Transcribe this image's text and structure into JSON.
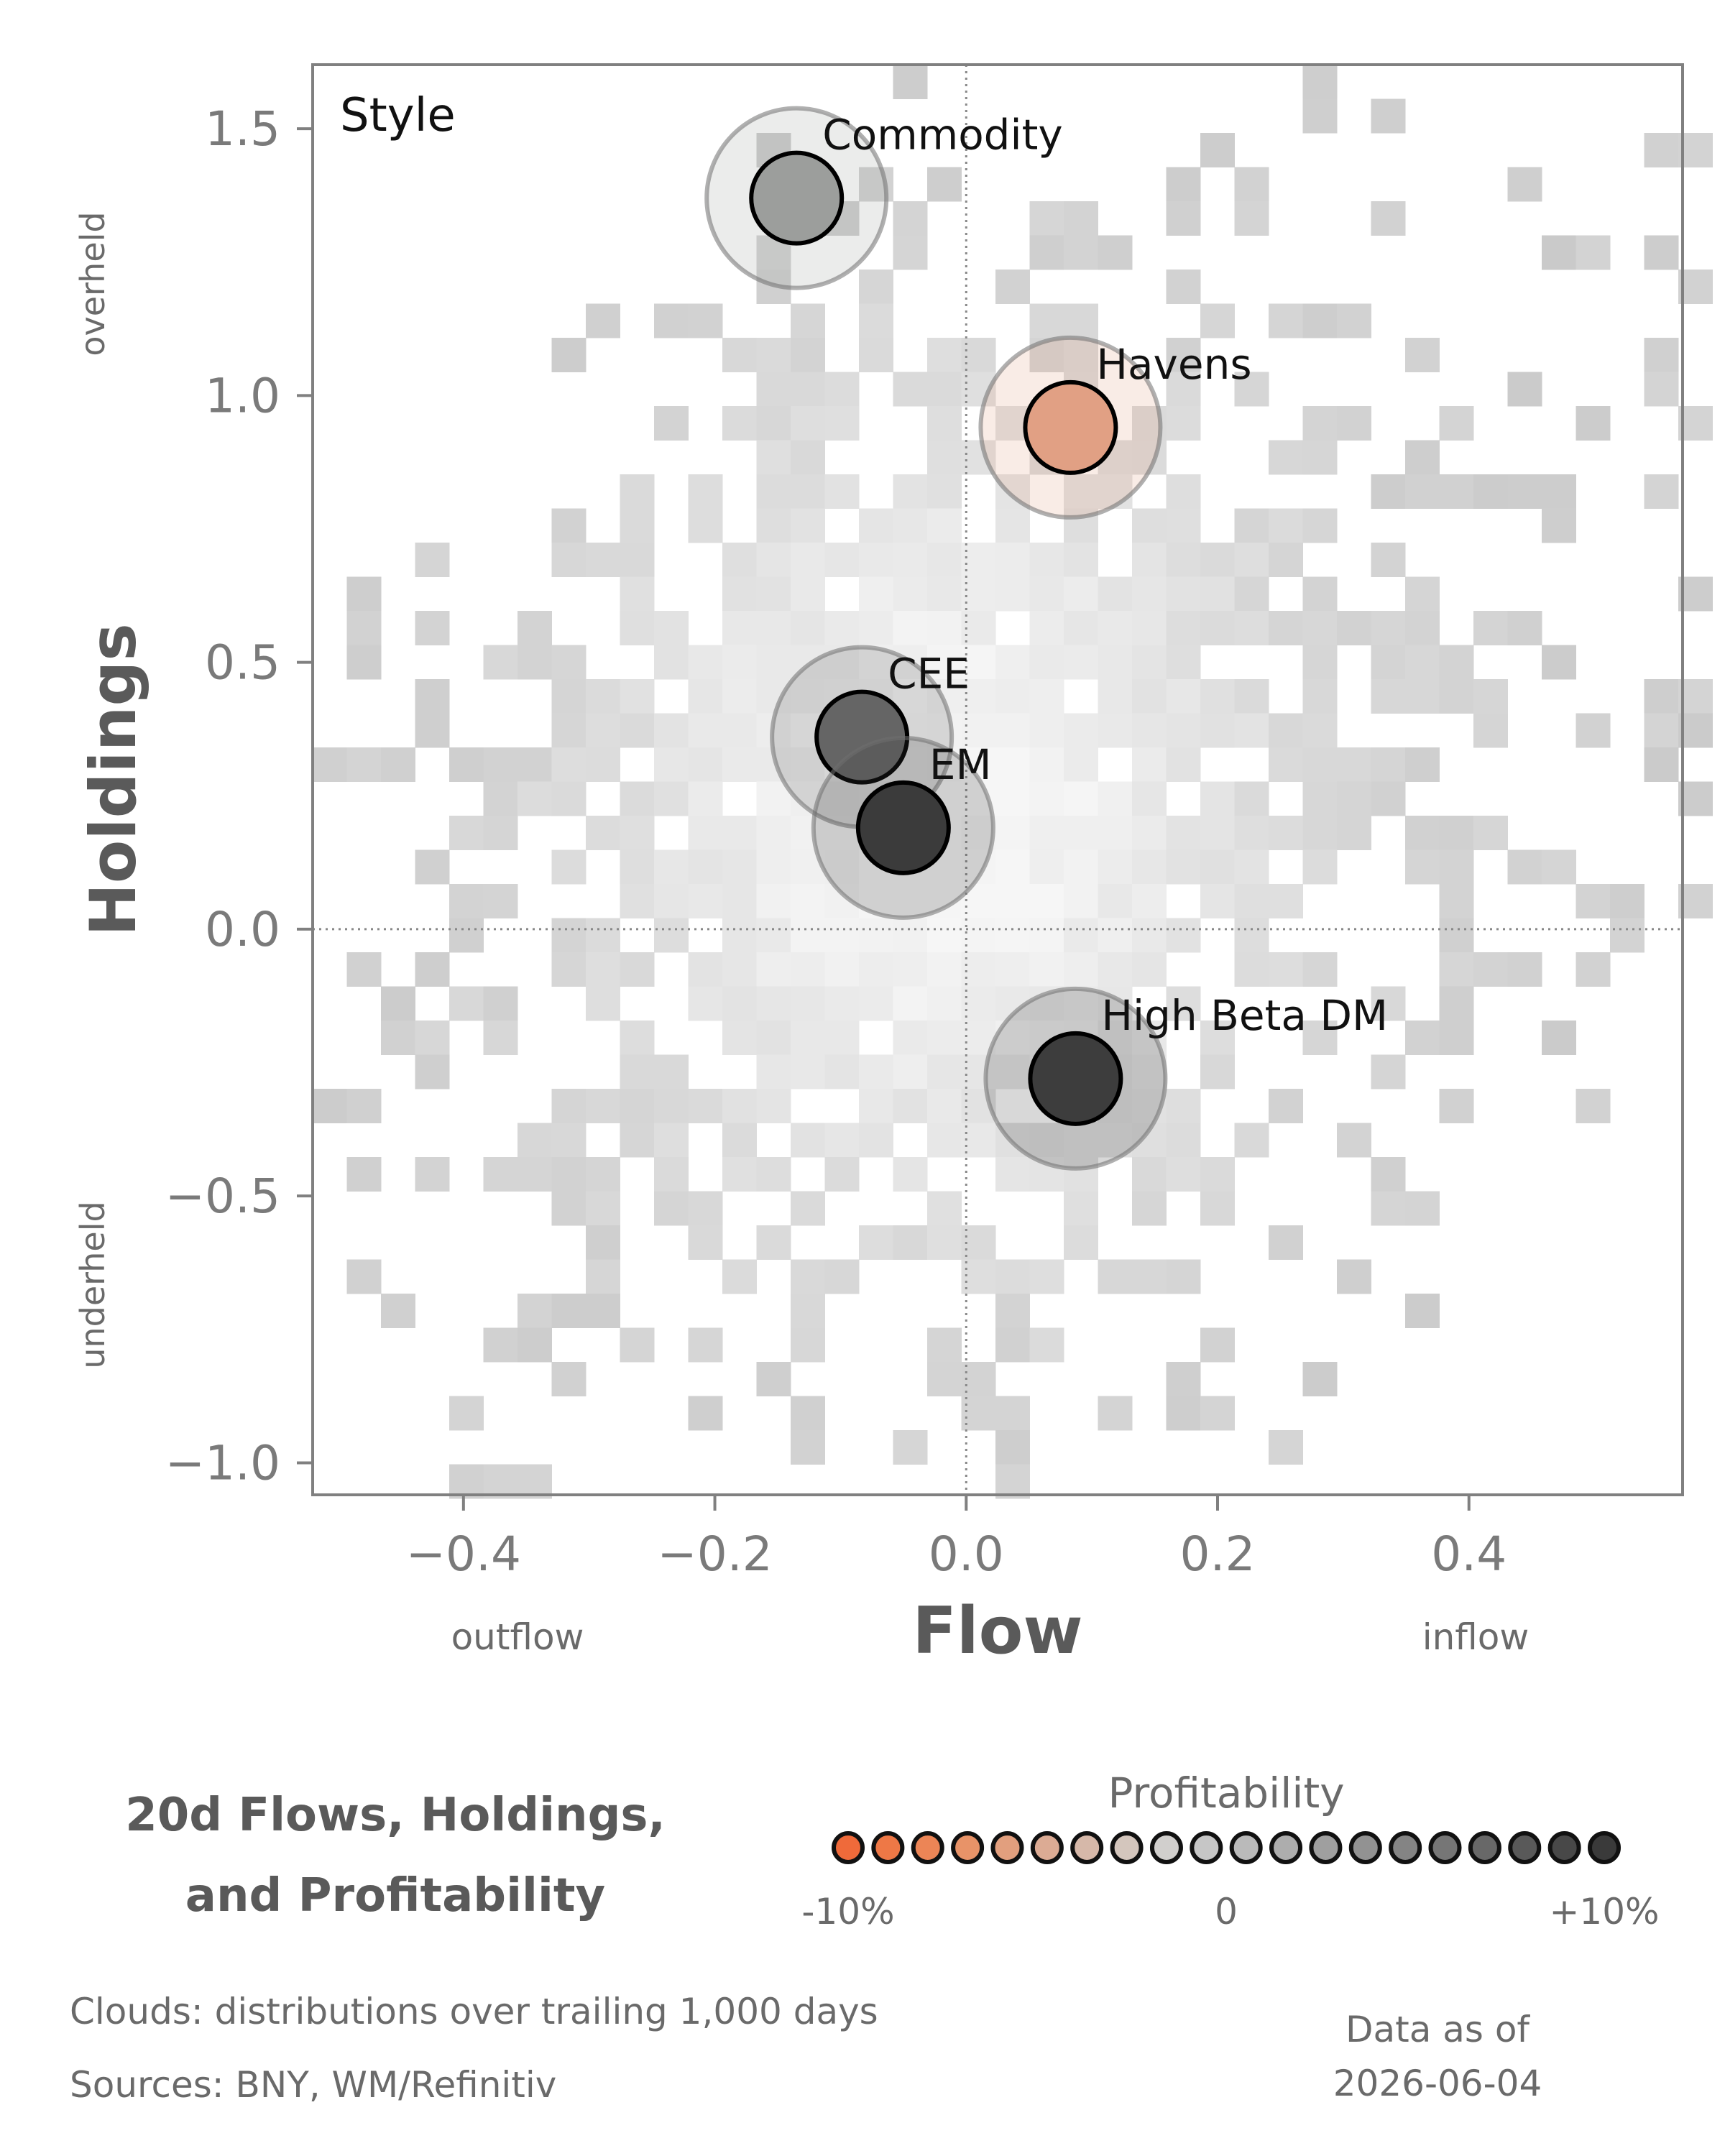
{
  "chart_data": {
    "type": "scatter",
    "xlabel": "Flow",
    "ylabel": "Holdings",
    "xlim": [
      -0.52,
      0.57
    ],
    "ylim": [
      -1.06,
      1.62
    ],
    "x_ticks": [
      -0.4,
      -0.2,
      0.0,
      0.2,
      0.4
    ],
    "x_tick_labels": [
      "−0.4",
      "−0.2",
      "0.0",
      "0.2",
      "0.4"
    ],
    "y_ticks": [
      -1.0,
      -0.5,
      0.0,
      0.5,
      1.0,
      1.5
    ],
    "y_tick_labels": [
      "−1.0",
      "−0.5",
      "0.0",
      "0.5",
      "1.0",
      "1.5"
    ],
    "x_side_labels": {
      "low": "outflow",
      "high": "inflow"
    },
    "y_side_labels": {
      "low": "underheld",
      "high": "overheld"
    },
    "panel_label": "Style",
    "points": [
      {
        "name": "Commodity",
        "x": -0.135,
        "y": 1.37,
        "profitability": 0.03,
        "color": "#9c9e9c"
      },
      {
        "name": "Havens",
        "x": 0.083,
        "y": 0.94,
        "profitability": -0.05,
        "color": "#e1a084"
      },
      {
        "name": "CEE",
        "x": -0.083,
        "y": 0.36,
        "profitability": 0.07,
        "color": "#656565"
      },
      {
        "name": "EM",
        "x": -0.05,
        "y": 0.19,
        "profitability": 0.1,
        "color": "#3b3b3b"
      },
      {
        "name": "High Beta DM",
        "x": 0.087,
        "y": -0.28,
        "profitability": 0.1,
        "color": "#3d3d3d"
      }
    ],
    "grid": false,
    "reference_lines": {
      "x": 0,
      "y": 0
    }
  },
  "legend": {
    "title": "Profitability",
    "min_label": "-10%",
    "mid_label": "0",
    "max_label": "+10%",
    "colors": [
      "#ef6a3a",
      "#ee7846",
      "#ec8556",
      "#e89368",
      "#e29f7e",
      "#dcab94",
      "#d6b8a9",
      "#d4c6bd",
      "#d1cfcd",
      "#c6c6c6",
      "#bababa",
      "#adadad",
      "#9f9f9f",
      "#929292",
      "#848484",
      "#767676",
      "#686868",
      "#595959",
      "#484848",
      "#3a3a3a"
    ]
  },
  "title": {
    "line1": "20d Flows, Holdings,",
    "line2": "and Profitability"
  },
  "footer": {
    "clouds": "Clouds:  distributions over trailing 1,000 days",
    "sources": "Sources:  BNY, WM/Refinitiv",
    "asof_label": "Data as of",
    "asof_date": "2026-06-04"
  }
}
